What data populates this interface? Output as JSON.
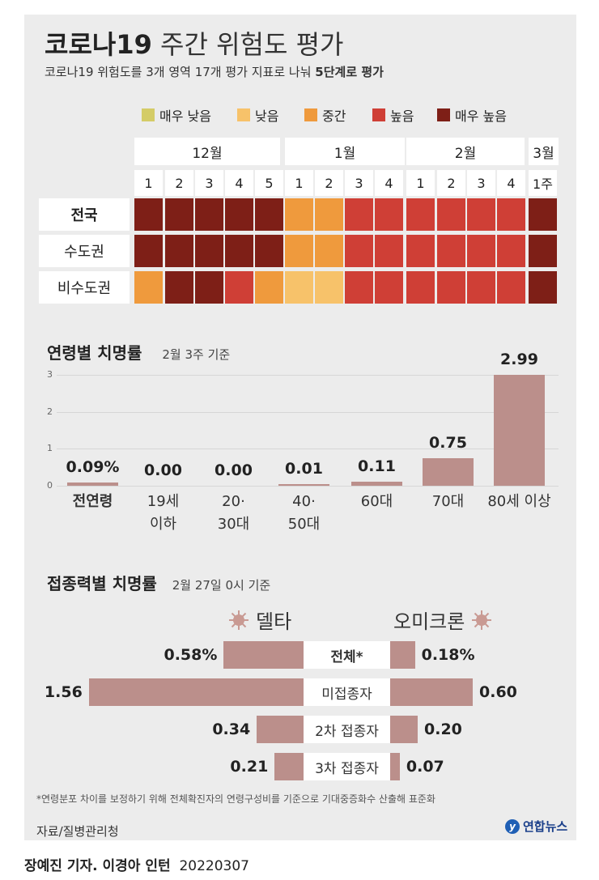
{
  "header": {
    "title_bold": "코로나19",
    "title_light": "주간 위험도 평가",
    "subtitle_main": "코로나19 위험도를 3개 영역 17개 평가 지표로 나눠",
    "subtitle_bold": "5단계로 평가"
  },
  "legend": [
    {
      "label": "매우 낮음",
      "color": "#d4cc67"
    },
    {
      "label": "낮음",
      "color": "#f7c26a"
    },
    {
      "label": "중간",
      "color": "#ef9a3d"
    },
    {
      "label": "높음",
      "color": "#cf3f36"
    },
    {
      "label": "매우 높음",
      "color": "#7e1f17"
    }
  ],
  "heatmap": {
    "months": [
      "12월",
      "1월",
      "2월",
      "3월"
    ],
    "weeks": [
      "1",
      "2",
      "3",
      "4",
      "5",
      "1",
      "2",
      "3",
      "4",
      "1",
      "2",
      "3",
      "4",
      "1주"
    ],
    "rows": [
      {
        "label": "전국",
        "levels": [
          5,
          5,
          5,
          5,
          5,
          3,
          3,
          4,
          4,
          4,
          4,
          4,
          4,
          5
        ]
      },
      {
        "label": "수도권",
        "levels": [
          5,
          5,
          5,
          5,
          5,
          3,
          3,
          4,
          4,
          4,
          4,
          4,
          4,
          5
        ]
      },
      {
        "label": "비수도권",
        "levels": [
          3,
          5,
          5,
          4,
          3,
          2,
          2,
          4,
          4,
          4,
          4,
          4,
          4,
          5
        ]
      }
    ]
  },
  "age_chart": {
    "title": "연령별 치명률",
    "note": "2월 3주 기준",
    "chart_data": {
      "type": "bar",
      "title": "연령별 치명률",
      "categories": [
        "전연령",
        "19세 이하",
        "20·30대",
        "40·50대",
        "60대",
        "70대",
        "80세 이상"
      ],
      "category_lines": [
        [
          "전연령"
        ],
        [
          "19세",
          "이하"
        ],
        [
          "20·",
          "30대"
        ],
        [
          "40·",
          "50대"
        ],
        [
          "60대"
        ],
        [
          "70대"
        ],
        [
          "80세 이상"
        ]
      ],
      "values": [
        0.09,
        0.0,
        0.0,
        0.01,
        0.11,
        0.75,
        2.99
      ],
      "value_labels": [
        "0.09%",
        "0.00",
        "0.00",
        "0.01",
        "0.11",
        "0.75",
        "2.99"
      ],
      "yticks": [
        0,
        1,
        2,
        3
      ],
      "ylim": [
        0,
        3
      ]
    }
  },
  "vacc_chart": {
    "title": "접종력별 치명률",
    "note": "2월 27일 0시 기준",
    "left_series_name": "델타",
    "right_series_name": "오미크론",
    "chart_data": {
      "type": "bar",
      "title": "접종력별 치명률",
      "categories": [
        "전체*",
        "미접종자",
        "2차 접종자",
        "3차 접종자"
      ],
      "series": [
        {
          "name": "델타",
          "values": [
            0.58,
            1.56,
            0.34,
            0.21
          ],
          "labels": [
            "0.58%",
            "1.56",
            "0.34",
            "0.21"
          ]
        },
        {
          "name": "오미크론",
          "values": [
            0.18,
            0.6,
            0.2,
            0.07
          ],
          "labels": [
            "0.18%",
            "0.60",
            "0.20",
            "0.07"
          ]
        }
      ]
    }
  },
  "footer": {
    "footnote": "*연령분포 차이를 보정하기 위해 전체확진자의 연령구성비를 기준으로 기대중증화수 산출해 표준화",
    "source": "자료/질병관리청",
    "logo": "연합뉴스",
    "credit_bold": "장예진 기자. 이경아 인턴",
    "credit_date": "20220307"
  },
  "colors": {
    "bar": "#bb8f8b",
    "virus": "#c99a93"
  }
}
